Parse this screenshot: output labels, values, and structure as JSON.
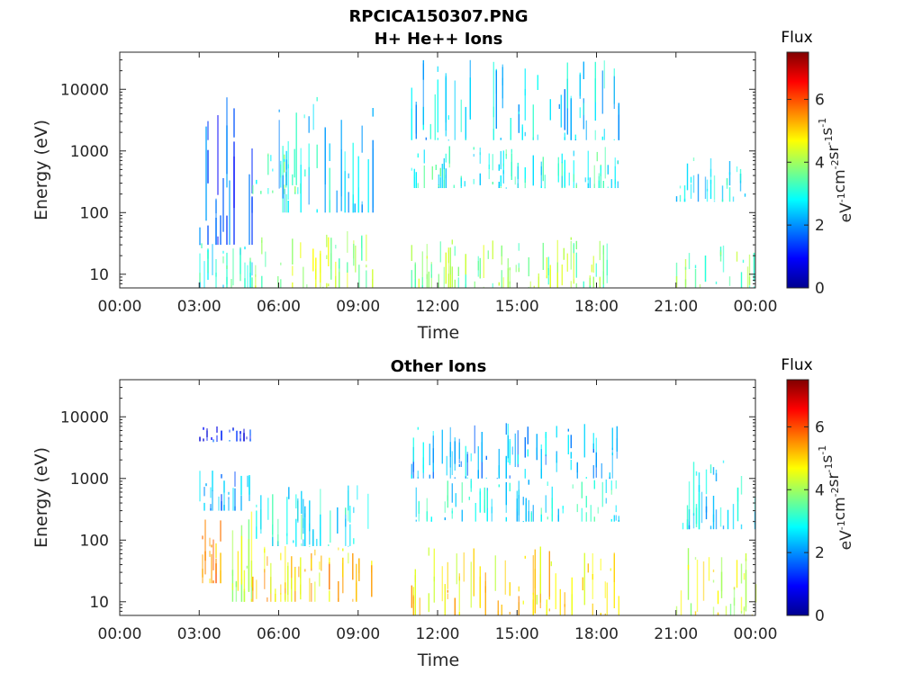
{
  "figure": {
    "filename_title": "RPCICA150307.PNG"
  },
  "chart_data": [
    {
      "type": "heatmap",
      "title": "H+ He++ Ions",
      "xlabel": "Time",
      "ylabel": "Energy (eV)",
      "xtick_labels": [
        "00:00",
        "03:00",
        "06:00",
        "09:00",
        "12:00",
        "15:00",
        "18:00",
        "21:00",
        "00:00"
      ],
      "xlim_hours": [
        0,
        24
      ],
      "ytick_labels": [
        "10",
        "100",
        "1000",
        "10000"
      ],
      "ytick_values": [
        10,
        100,
        1000,
        10000
      ],
      "ylim": [
        6,
        40000
      ],
      "yscale": "log",
      "colorbar": {
        "title": "Flux",
        "unit": "eV-1cm-2sr-1s-1",
        "tick_labels": [
          "0",
          "2",
          "4",
          "6"
        ],
        "tick_values": [
          0,
          2,
          4,
          6
        ],
        "range": [
          0,
          7.5
        ],
        "colormap": "jet"
      },
      "data_gaps_hours": [
        [
          0,
          3.0
        ],
        [
          9.55,
          11.0
        ],
        [
          18.85,
          21.0
        ]
      ],
      "bands": [
        {
          "t": [
            3.0,
            5.0
          ],
          "e": [
            30,
            8000
          ],
          "flux": 1.6
        },
        {
          "t": [
            3.0,
            5.0
          ],
          "e": [
            6,
            40
          ],
          "flux": 3.0
        },
        {
          "t": [
            5.0,
            7.0
          ],
          "e": [
            200,
            1000
          ],
          "flux": 3.3
        },
        {
          "t": [
            5.0,
            9.55
          ],
          "e": [
            6,
            50
          ],
          "flux": 4.0
        },
        {
          "t": [
            6.0,
            9.55
          ],
          "e": [
            100,
            8000
          ],
          "flux": 2.6
        },
        {
          "t": [
            11.0,
            18.85
          ],
          "e": [
            250,
            1200
          ],
          "flux": 3.0
        },
        {
          "t": [
            11.0,
            18.85
          ],
          "e": [
            6,
            40
          ],
          "flux": 3.8
        },
        {
          "t": [
            11.0,
            18.85
          ],
          "e": [
            1500,
            30000
          ],
          "flux": 2.5
        },
        {
          "t": [
            21.0,
            24.0
          ],
          "e": [
            150,
            800
          ],
          "flux": 2.7
        },
        {
          "t": [
            21.0,
            24.0
          ],
          "e": [
            6,
            30
          ],
          "flux": 3.6
        }
      ]
    },
    {
      "type": "heatmap",
      "title": "Other Ions",
      "xlabel": "Time",
      "ylabel": "Energy (eV)",
      "xtick_labels": [
        "00:00",
        "03:00",
        "06:00",
        "09:00",
        "12:00",
        "15:00",
        "18:00",
        "21:00",
        "00:00"
      ],
      "xlim_hours": [
        0,
        24
      ],
      "ytick_labels": [
        "10",
        "100",
        "1000",
        "10000"
      ],
      "ytick_values": [
        10,
        100,
        1000,
        10000
      ],
      "ylim": [
        6,
        40000
      ],
      "yscale": "log",
      "colorbar": {
        "title": "Flux",
        "unit": "eV-1cm-2sr-1s-1",
        "tick_labels": [
          "0",
          "2",
          "4",
          "6"
        ],
        "tick_values": [
          0,
          2,
          4,
          6
        ],
        "range": [
          0,
          7.5
        ],
        "colormap": "jet"
      },
      "data_gaps_hours": [
        [
          0,
          3.0
        ],
        [
          9.55,
          11.0
        ],
        [
          18.85,
          21.0
        ]
      ],
      "bands": [
        {
          "t": [
            3.0,
            3.8
          ],
          "e": [
            20,
            300
          ],
          "flux": 5.6
        },
        {
          "t": [
            3.0,
            5.0
          ],
          "e": [
            300,
            1500
          ],
          "flux": 2.0
        },
        {
          "t": [
            3.0,
            5.0
          ],
          "e": [
            4000,
            7000
          ],
          "flux": 1.2
        },
        {
          "t": [
            4.0,
            5.0
          ],
          "e": [
            10,
            500
          ],
          "flux": 4.2
        },
        {
          "t": [
            5.0,
            9.55
          ],
          "e": [
            10,
            80
          ],
          "flux": 5.0
        },
        {
          "t": [
            5.0,
            9.55
          ],
          "e": [
            80,
            800
          ],
          "flux": 2.9
        },
        {
          "t": [
            11.0,
            18.85
          ],
          "e": [
            6,
            80
          ],
          "flux": 4.9
        },
        {
          "t": [
            11.0,
            18.85
          ],
          "e": [
            200,
            1000
          ],
          "flux": 2.8
        },
        {
          "t": [
            11.0,
            18.85
          ],
          "e": [
            1000,
            8000
          ],
          "flux": 2.3
        },
        {
          "t": [
            21.0,
            24.0
          ],
          "e": [
            6,
            80
          ],
          "flux": 4.4
        },
        {
          "t": [
            21.0,
            24.0
          ],
          "e": [
            150,
            2000
          ],
          "flux": 2.6
        }
      ]
    }
  ]
}
